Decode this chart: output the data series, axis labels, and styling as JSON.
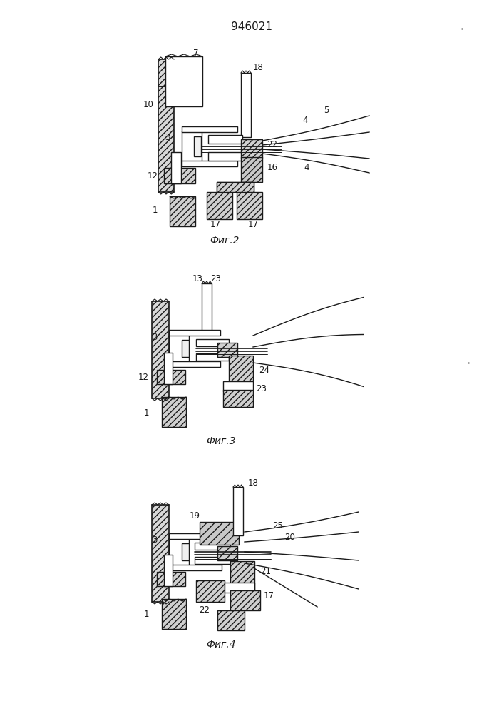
{
  "patent_number": "946021",
  "bg_color": "#ffffff",
  "lc": "#1a1a1a",
  "fig2_caption": "Фиг.2",
  "fig3_caption": "Фиг.3",
  "fig4_caption": "Фиг.4"
}
